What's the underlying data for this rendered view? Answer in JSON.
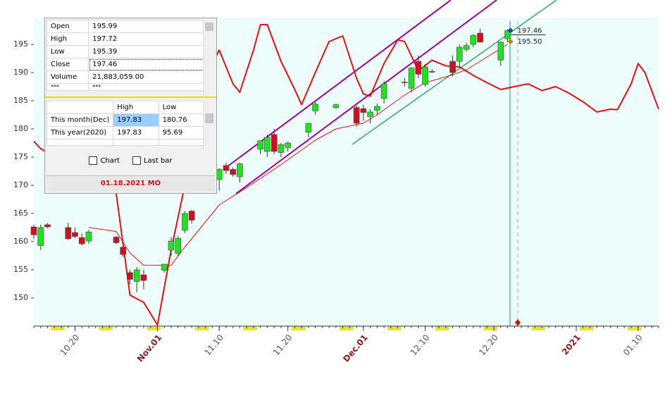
{
  "chart_data": {
    "type": "candlestick",
    "x": [
      "10.14",
      "10.15",
      "10.16",
      "10.19",
      "10.20",
      "10.21",
      "10.22",
      "10.26",
      "10.27",
      "10.28",
      "10.29",
      "10.30",
      "11.02",
      "11.03",
      "11.04",
      "11.05",
      "11.06",
      "11.10",
      "11.11",
      "11.12",
      "11.13",
      "11.16",
      "11.17",
      "11.18",
      "11.19",
      "11.20",
      "11.23",
      "11.24",
      "11.27",
      "11.30",
      "12.01",
      "12.02",
      "12.03",
      "12.04",
      "12.07",
      "12.08",
      "12.09",
      "12.10",
      "12.11",
      "12.14",
      "12.15",
      "12.16",
      "12.17",
      "12.18",
      "12.21",
      "12.22"
    ],
    "open": [
      162.6,
      159.3,
      163.0,
      162.5,
      161.6,
      160.7,
      160.1,
      160.8,
      159.0,
      154.5,
      152.9,
      154.1,
      154.9,
      158.5,
      157.9,
      162.0,
      165.4,
      171.0,
      173.5,
      172.8,
      171.5,
      176.4,
      176.0,
      179.0,
      175.8,
      176.7,
      179.4,
      183.2,
      183.8,
      183.8,
      183.6,
      182.2,
      183.3,
      185.4,
      188.2,
      187.2,
      192.0,
      187.9,
      190.2,
      192.0,
      192.0,
      194.1,
      195.0,
      197.0,
      192.2,
      195.99
    ],
    "high": [
      163.0,
      163.0,
      163.3,
      163.3,
      162.5,
      161.4,
      162.1,
      161.0,
      159.3,
      155.0,
      155.5,
      155.0,
      156.0,
      160.8,
      161.0,
      165.4,
      165.6,
      173.0,
      174.0,
      173.2,
      174.0,
      178.0,
      179.0,
      180.0,
      177.5,
      177.7,
      180.5,
      185.0,
      184.5,
      184.2,
      184.3,
      183.5,
      184.5,
      188.5,
      189.0,
      191.0,
      193.0,
      191.5,
      190.6,
      193.0,
      195.0,
      195.3,
      196.9,
      197.8,
      195.5,
      197.72
    ],
    "low": [
      160.5,
      158.5,
      162.4,
      160.3,
      160.6,
      159.3,
      159.6,
      159.5,
      157.3,
      152.4,
      151.0,
      151.5,
      154.5,
      157.5,
      157.5,
      161.5,
      163.2,
      169.0,
      172.0,
      171.5,
      170.5,
      175.5,
      175.0,
      175.5,
      175.0,
      176.0,
      178.5,
      182.5,
      183.5,
      180.4,
      181.5,
      181.0,
      182.5,
      184.5,
      187.5,
      186.5,
      189.0,
      187.5,
      189.9,
      189.3,
      191.0,
      193.7,
      194.5,
      195.3,
      191.2,
      195.39
    ],
    "close": [
      161.2,
      162.5,
      162.6,
      160.5,
      160.9,
      159.6,
      161.7,
      159.8,
      157.7,
      153.3,
      155.0,
      153.1,
      156.0,
      160.1,
      160.6,
      165.0,
      163.8,
      172.8,
      172.6,
      171.9,
      173.8,
      177.9,
      178.5,
      176.0,
      177.2,
      177.5,
      181.0,
      184.4,
      184.3,
      181.0,
      182.9,
      183.0,
      184.0,
      188.0,
      188.3,
      190.8,
      189.7,
      191.0,
      190.1,
      190.0,
      194.5,
      194.8,
      196.6,
      195.4,
      195.4,
      197.46
    ],
    "up_color": "#22e022",
    "down_color": "#d01020",
    "lines": [
      {
        "color": "#e01010",
        "line_width": 2,
        "x": [
          "10.14",
          "10.15",
          "10.26",
          "10.28",
          "10.30",
          "11.01",
          "11.03",
          "11.05",
          "11.08",
          "11.09",
          "11.10",
          "11.12",
          "11.13",
          "11.15",
          "11.16",
          "11.17",
          "11.19",
          "11.21",
          "11.22",
          "11.24",
          "11.26",
          "11.28",
          "11.30",
          "12.01",
          "12.02",
          "12.04",
          "12.06",
          "12.07",
          "12.09",
          "12.11",
          "12.13",
          "12.15",
          "12.17",
          "12.19",
          "12.21",
          "12.23",
          "12.25",
          "12.27",
          "12.29",
          "12.31",
          "01.02",
          "01.04",
          "01.06",
          "01.07",
          "01.09",
          "01.10",
          "01.11",
          "01.13"
        ],
        "values": [
          177.8,
          176.5,
          168.5,
          150.5,
          149.2,
          145.2,
          158.5,
          170,
          188,
          191.5,
          194,
          188,
          186.5,
          194,
          198.5,
          198.5,
          192,
          187,
          184.3,
          190,
          195.5,
          196.5,
          189,
          186.2,
          185.8,
          191.6,
          195.8,
          195.5,
          190.3,
          192.2,
          191.2,
          191,
          189.5,
          188.2,
          187,
          187.5,
          188,
          186.8,
          187.5,
          186.3,
          184.8,
          183,
          183.5,
          183.4,
          188,
          191.6,
          190,
          183.5
        ]
      },
      {
        "color": "#e01010",
        "line_width": 1,
        "x": [
          "10.22",
          "10.26",
          "10.28",
          "10.30",
          "11.03",
          "11.05",
          "11.10",
          "11.13",
          "11.17",
          "11.20",
          "11.24",
          "11.27",
          "12.01",
          "12.03",
          "12.07",
          "12.10",
          "12.14",
          "12.16",
          "12.18",
          "12.22"
        ],
        "values": [
          162.5,
          161.8,
          158,
          155.8,
          155.8,
          159,
          166.5,
          168.8,
          172,
          174.5,
          178,
          180,
          181,
          182.5,
          186,
          188.2,
          189.6,
          190.5,
          192,
          195
        ]
      }
    ],
    "price_labels": [
      {
        "value": 197.46,
        "color": "#1a3fb0"
      },
      {
        "value": 195.5,
        "label": "195.50",
        "color": "#b8860b"
      }
    ],
    "xlim": [
      "10.14",
      "01.13"
    ],
    "xticks": [
      "10.20",
      {
        "value": "11.01",
        "label": "Nov.01"
      },
      "11.10",
      "11.20",
      {
        "value": "12.01",
        "label": "Dec.01"
      },
      "12.10",
      "12.20",
      {
        "value": "01.01",
        "label": "2021"
      },
      "01.10"
    ],
    "xtick_color": "#555555",
    "xtick_major_color": "#8b1a1a",
    "ylim": [
      145,
      200
    ],
    "yticks": [
      150,
      155,
      160,
      165,
      170,
      175,
      180,
      185,
      190,
      195
    ]
  },
  "data_window": {
    "rows": [
      [
        "Open",
        "195.99"
      ],
      [
        "High",
        "197.72"
      ],
      [
        "Low",
        "195.39"
      ],
      [
        "Close",
        "197.46"
      ],
      [
        "Volume",
        "21,883,059.00"
      ],
      [
        "***",
        "***"
      ]
    ],
    "range_header": [
      "High",
      "Low"
    ],
    "range_rows": [
      [
        "This month(Dec)",
        "197.83",
        "180.76"
      ],
      [
        "This year(2020)",
        "197.83",
        "95.69"
      ]
    ],
    "checkboxes": [
      "Chart",
      "Last bar"
    ],
    "date": "01.18.2021 MO"
  }
}
